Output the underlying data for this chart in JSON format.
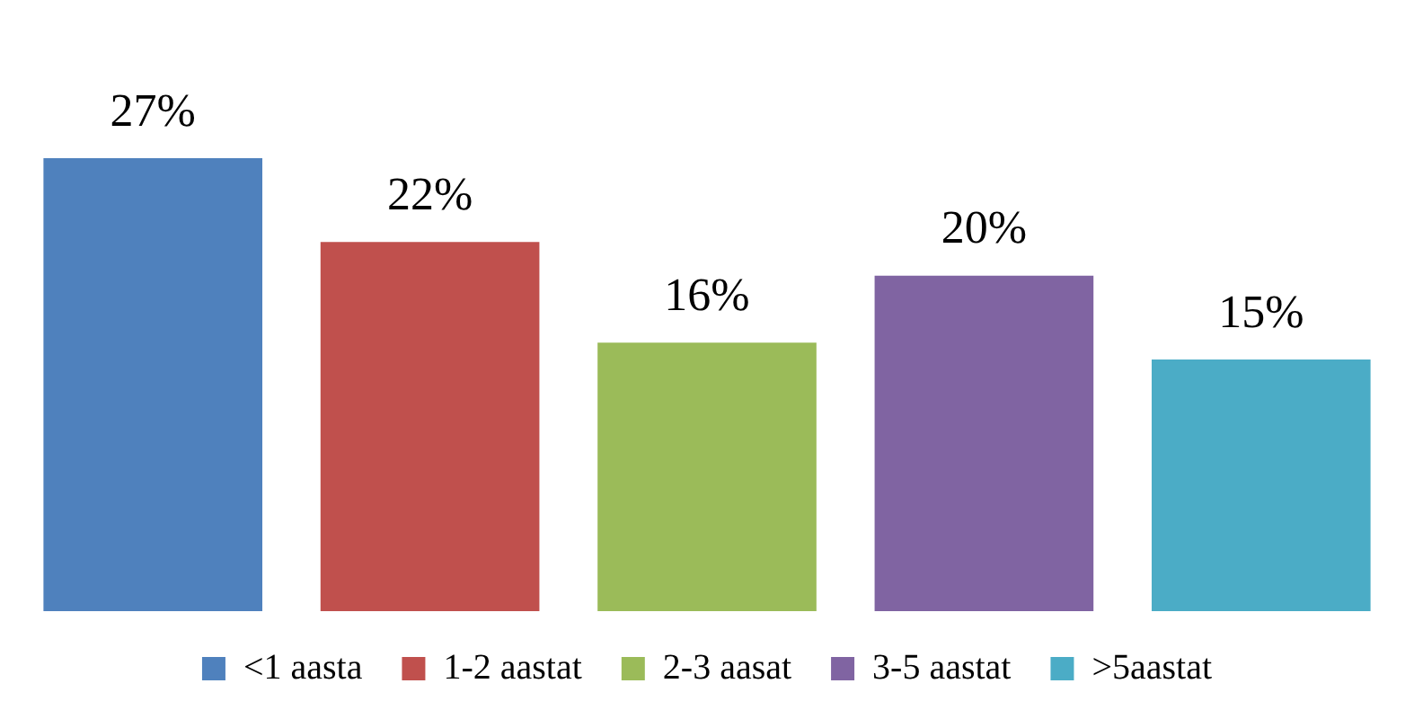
{
  "chart_data": {
    "type": "bar",
    "categories": [
      null
    ],
    "series": [
      {
        "name": "<1 aasta",
        "color": "#4f81bd",
        "values": [
          27
        ],
        "value_labels": [
          "27%"
        ]
      },
      {
        "name": "1-2 aastat",
        "color": "#c0504d",
        "values": [
          22
        ],
        "value_labels": [
          "22%"
        ]
      },
      {
        "name": "2-3 aasat",
        "color": "#9bbb59",
        "values": [
          16
        ],
        "value_labels": [
          "16%"
        ]
      },
      {
        "name": "3-5 aastat",
        "color": "#8064a2",
        "values": [
          20
        ],
        "value_labels": [
          "20%"
        ]
      },
      {
        "name": ">5aastat",
        "color": "#4bacc6",
        "values": [
          15
        ],
        "value_labels": [
          "15%"
        ]
      }
    ],
    "legend": "bottom",
    "grid": false,
    "tick_labels": false
  }
}
